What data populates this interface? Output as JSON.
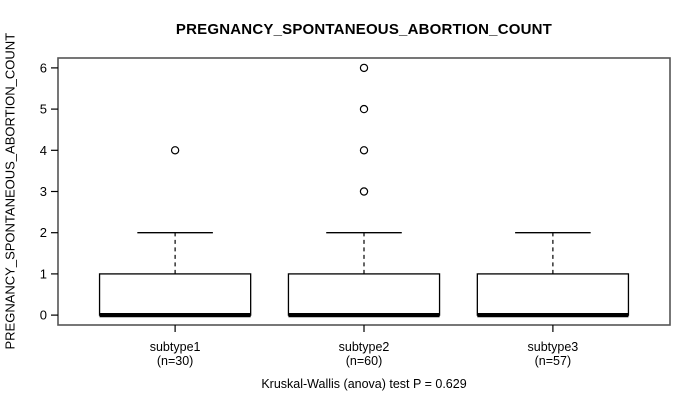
{
  "chart_data": {
    "type": "boxplot",
    "title": "PREGNANCY_SPONTANEOUS_ABORTION_COUNT",
    "ylabel": "PREGNANCY_SPONTANEOUS_ABORTION_COUNT",
    "footer": "Kruskal-Wallis (anova) test P = 0.629",
    "ylim": [
      0,
      6
    ],
    "yticks": [
      0,
      1,
      2,
      3,
      4,
      5,
      6
    ],
    "grid": false,
    "legend": "none",
    "groups": [
      {
        "label": "subtype1",
        "n_label": "(n=30)",
        "whisker_low": 0,
        "q1": 0,
        "median": 0,
        "q3": 1,
        "whisker_high": 2,
        "outliers": [
          4
        ]
      },
      {
        "label": "subtype2",
        "n_label": "(n=60)",
        "whisker_low": 0,
        "q1": 0,
        "median": 0,
        "q3": 1,
        "whisker_high": 2,
        "outliers": [
          3,
          4,
          5,
          6
        ]
      },
      {
        "label": "subtype3",
        "n_label": "(n=57)",
        "whisker_low": 0,
        "q1": 0,
        "median": 0,
        "q3": 1,
        "whisker_high": 2,
        "outliers": []
      }
    ],
    "colors": {
      "stroke": "#000000",
      "frame": "#555555",
      "box_fill": "#ffffff",
      "background": "#ffffff"
    }
  }
}
